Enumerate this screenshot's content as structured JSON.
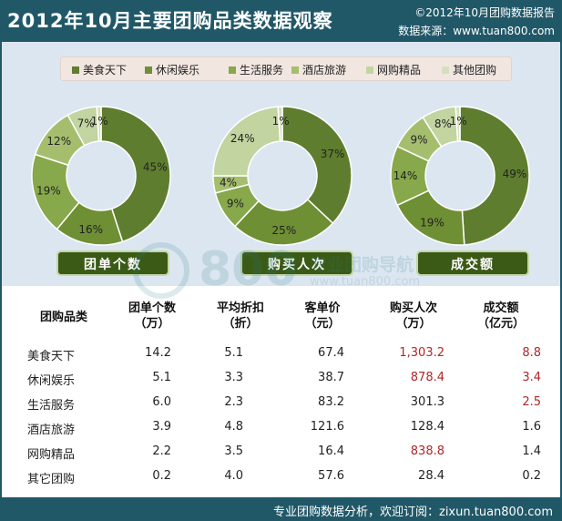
{
  "header": {
    "title": "2012年10月主要团购品类数据观察",
    "copyright": "©2012年10月团购数据报告",
    "source": "数据来源：www.tuan800.com"
  },
  "colors": {
    "header_bg": "#215868",
    "categories": [
      "#5f7d2e",
      "#6f8f34",
      "#87a84b",
      "#a4be6e",
      "#c2d4a0",
      "#d4e0bd"
    ],
    "highlight_text": "#b32626"
  },
  "chart_data": [
    {
      "type": "pie",
      "hole": true,
      "categories": [
        "美食天下",
        "休闲娱乐",
        "生活服务",
        "酒店旅游",
        "网购精品",
        "其他团购"
      ],
      "values": [
        45,
        16,
        19,
        12,
        7,
        1
      ],
      "value_labels": [
        "45%",
        "16%",
        "19%",
        "12%",
        "7%",
        "1%"
      ],
      "title": "团单个数"
    },
    {
      "type": "pie",
      "hole": true,
      "categories": [
        "美食天下",
        "休闲娱乐",
        "生活服务",
        "酒店旅游",
        "网购精品",
        "其他团购"
      ],
      "values": [
        37,
        25,
        9,
        4,
        24,
        1
      ],
      "value_labels": [
        "37%",
        "25%",
        "9%",
        "4%",
        "24%",
        "1%"
      ],
      "title": "购买人次"
    },
    {
      "type": "pie",
      "hole": true,
      "categories": [
        "美食天下",
        "休闲娱乐",
        "生活服务",
        "酒店旅游",
        "网购精品",
        "其他团购"
      ],
      "values": [
        49,
        19,
        14,
        9,
        8,
        1
      ],
      "value_labels": [
        "49%",
        "19%",
        "14%",
        "9%",
        "8%",
        "1%"
      ],
      "title": "成交额"
    },
    {
      "type": "table",
      "columns": [
        "团购品类",
        "团单个数\n（万）",
        "平均折扣\n（折）",
        "客单价\n（元）",
        "购买人次\n（万）",
        "成交额\n（亿元）"
      ],
      "rows": [
        [
          "美食天下",
          "14.2",
          "5.1",
          "67.4",
          "1,303.2",
          "8.8"
        ],
        [
          "休闲娱乐",
          "5.1",
          "3.3",
          "38.7",
          "878.4",
          "3.4"
        ],
        [
          "生活服务",
          "6.0",
          "2.3",
          "83.2",
          "301.3",
          "2.5"
        ],
        [
          "酒店旅游",
          "3.9",
          "4.8",
          "121.6",
          "128.4",
          "1.6"
        ],
        [
          "网购精品",
          "2.2",
          "3.5",
          "16.4",
          "838.8",
          "1.4"
        ],
        [
          "其它团购",
          "0.2",
          "4.0",
          "57.6",
          "28.4",
          "0.2"
        ]
      ],
      "highlighted": [
        [
          0,
          4
        ],
        [
          0,
          5
        ],
        [
          1,
          4
        ],
        [
          1,
          5
        ],
        [
          2,
          5
        ],
        [
          4,
          4
        ]
      ]
    }
  ],
  "legend": {
    "items": [
      "美食天下",
      "休闲娱乐",
      "生活服务",
      "酒店旅游",
      "网购精品",
      "其他团购"
    ]
  },
  "buttons": [
    "团单个数",
    "购买人次",
    "成交额"
  ],
  "watermark": {
    "number": "800",
    "brand": "专业团购导航",
    "url": "www.tuan800.com"
  },
  "footer": {
    "text": "专业团购数据分析，欢迎订阅：zixun.tuan800.com"
  }
}
